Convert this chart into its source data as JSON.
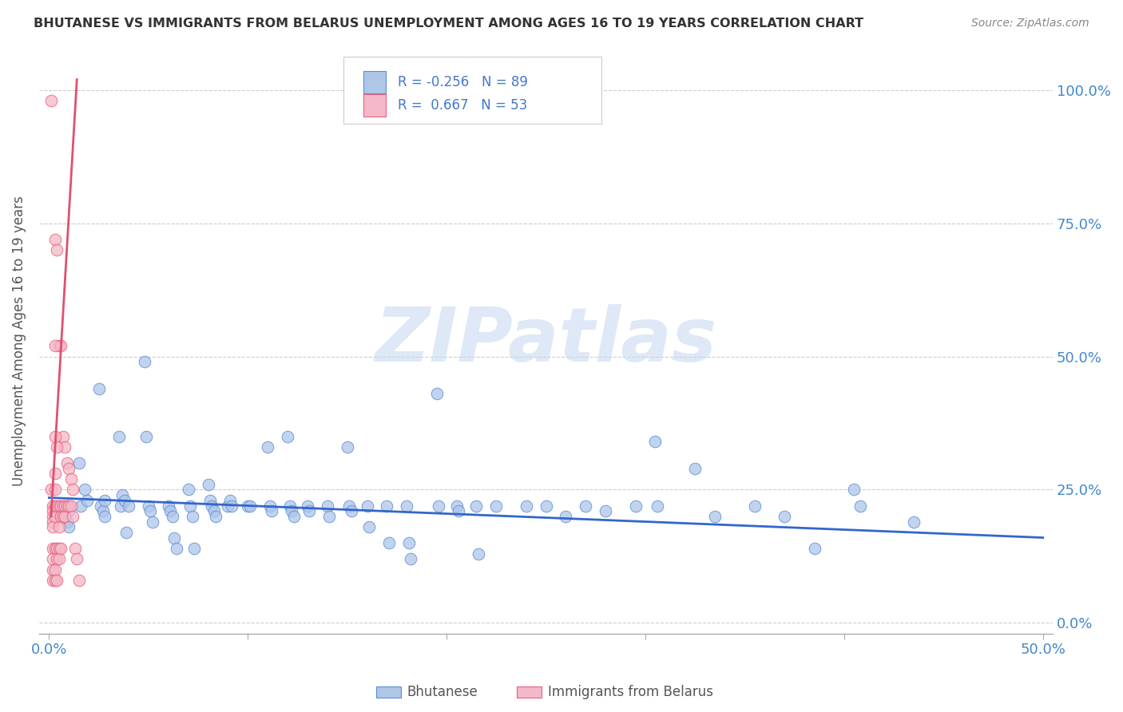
{
  "title": "BHUTANESE VS IMMIGRANTS FROM BELARUS UNEMPLOYMENT AMONG AGES 16 TO 19 YEARS CORRELATION CHART",
  "source": "Source: ZipAtlas.com",
  "ylabel": "Unemployment Among Ages 16 to 19 years",
  "xlim": [
    -0.005,
    0.505
  ],
  "ylim": [
    -0.02,
    1.08
  ],
  "yticks": [
    0.0,
    0.25,
    0.5,
    0.75,
    1.0
  ],
  "ytick_labels": [
    "0.0%",
    "25.0%",
    "50.0%",
    "75.0%",
    "100.0%"
  ],
  "xticks": [
    0.0,
    0.1,
    0.2,
    0.3,
    0.4,
    0.5
  ],
  "xtick_labels": [
    "0.0%",
    "",
    "",
    "",
    "",
    "50.0%"
  ],
  "blue_color": "#aec6e8",
  "pink_color": "#f4b8c8",
  "blue_edge_color": "#5b8dd9",
  "pink_edge_color": "#e8607a",
  "blue_line_color": "#3366cc",
  "pink_line_color": "#e05070",
  "legend_blue_label": "Bhutanese",
  "legend_pink_label": "Immigrants from Belarus",
  "R_blue": -0.256,
  "N_blue": 89,
  "R_pink": 0.667,
  "N_pink": 53,
  "watermark_text": "ZIPatlas",
  "blue_scatter": [
    [
      0.005,
      0.21
    ],
    [
      0.008,
      0.2
    ],
    [
      0.009,
      0.22
    ],
    [
      0.009,
      0.19
    ],
    [
      0.01,
      0.21
    ],
    [
      0.01,
      0.18
    ],
    [
      0.015,
      0.3
    ],
    [
      0.016,
      0.22
    ],
    [
      0.018,
      0.25
    ],
    [
      0.019,
      0.23
    ],
    [
      0.025,
      0.44
    ],
    [
      0.026,
      0.22
    ],
    [
      0.027,
      0.21
    ],
    [
      0.028,
      0.2
    ],
    [
      0.028,
      0.23
    ],
    [
      0.035,
      0.35
    ],
    [
      0.036,
      0.22
    ],
    [
      0.037,
      0.24
    ],
    [
      0.038,
      0.23
    ],
    [
      0.039,
      0.17
    ],
    [
      0.04,
      0.22
    ],
    [
      0.048,
      0.49
    ],
    [
      0.049,
      0.35
    ],
    [
      0.05,
      0.22
    ],
    [
      0.051,
      0.21
    ],
    [
      0.052,
      0.19
    ],
    [
      0.06,
      0.22
    ],
    [
      0.061,
      0.21
    ],
    [
      0.062,
      0.2
    ],
    [
      0.063,
      0.16
    ],
    [
      0.064,
      0.14
    ],
    [
      0.07,
      0.25
    ],
    [
      0.071,
      0.22
    ],
    [
      0.072,
      0.2
    ],
    [
      0.073,
      0.14
    ],
    [
      0.08,
      0.26
    ],
    [
      0.081,
      0.23
    ],
    [
      0.082,
      0.22
    ],
    [
      0.083,
      0.21
    ],
    [
      0.084,
      0.2
    ],
    [
      0.09,
      0.22
    ],
    [
      0.091,
      0.23
    ],
    [
      0.092,
      0.22
    ],
    [
      0.1,
      0.22
    ],
    [
      0.101,
      0.22
    ],
    [
      0.11,
      0.33
    ],
    [
      0.111,
      0.22
    ],
    [
      0.112,
      0.21
    ],
    [
      0.12,
      0.35
    ],
    [
      0.121,
      0.22
    ],
    [
      0.122,
      0.21
    ],
    [
      0.123,
      0.2
    ],
    [
      0.13,
      0.22
    ],
    [
      0.131,
      0.21
    ],
    [
      0.14,
      0.22
    ],
    [
      0.141,
      0.2
    ],
    [
      0.15,
      0.33
    ],
    [
      0.151,
      0.22
    ],
    [
      0.152,
      0.21
    ],
    [
      0.16,
      0.22
    ],
    [
      0.161,
      0.18
    ],
    [
      0.17,
      0.22
    ],
    [
      0.171,
      0.15
    ],
    [
      0.18,
      0.22
    ],
    [
      0.181,
      0.15
    ],
    [
      0.182,
      0.12
    ],
    [
      0.195,
      0.43
    ],
    [
      0.196,
      0.22
    ],
    [
      0.205,
      0.22
    ],
    [
      0.206,
      0.21
    ],
    [
      0.215,
      0.22
    ],
    [
      0.216,
      0.13
    ],
    [
      0.225,
      0.22
    ],
    [
      0.24,
      0.22
    ],
    [
      0.25,
      0.22
    ],
    [
      0.26,
      0.2
    ],
    [
      0.27,
      0.22
    ],
    [
      0.28,
      0.21
    ],
    [
      0.295,
      0.22
    ],
    [
      0.305,
      0.34
    ],
    [
      0.306,
      0.22
    ],
    [
      0.325,
      0.29
    ],
    [
      0.335,
      0.2
    ],
    [
      0.355,
      0.22
    ],
    [
      0.37,
      0.2
    ],
    [
      0.385,
      0.14
    ],
    [
      0.405,
      0.25
    ],
    [
      0.408,
      0.22
    ],
    [
      0.435,
      0.19
    ]
  ],
  "pink_scatter": [
    [
      0.001,
      0.98
    ],
    [
      0.003,
      0.72
    ],
    [
      0.004,
      0.7
    ],
    [
      0.005,
      0.52
    ],
    [
      0.006,
      0.52
    ],
    [
      0.007,
      0.35
    ],
    [
      0.008,
      0.33
    ],
    [
      0.009,
      0.3
    ],
    [
      0.01,
      0.29
    ],
    [
      0.011,
      0.27
    ],
    [
      0.012,
      0.25
    ],
    [
      0.001,
      0.25
    ],
    [
      0.002,
      0.22
    ],
    [
      0.002,
      0.21
    ],
    [
      0.002,
      0.2
    ],
    [
      0.002,
      0.19
    ],
    [
      0.002,
      0.18
    ],
    [
      0.002,
      0.14
    ],
    [
      0.002,
      0.12
    ],
    [
      0.002,
      0.1
    ],
    [
      0.002,
      0.08
    ],
    [
      0.003,
      0.52
    ],
    [
      0.003,
      0.35
    ],
    [
      0.003,
      0.28
    ],
    [
      0.003,
      0.25
    ],
    [
      0.003,
      0.22
    ],
    [
      0.003,
      0.2
    ],
    [
      0.003,
      0.14
    ],
    [
      0.003,
      0.1
    ],
    [
      0.003,
      0.08
    ],
    [
      0.004,
      0.33
    ],
    [
      0.004,
      0.22
    ],
    [
      0.004,
      0.14
    ],
    [
      0.004,
      0.12
    ],
    [
      0.004,
      0.08
    ],
    [
      0.005,
      0.22
    ],
    [
      0.005,
      0.18
    ],
    [
      0.005,
      0.14
    ],
    [
      0.005,
      0.12
    ],
    [
      0.006,
      0.22
    ],
    [
      0.006,
      0.2
    ],
    [
      0.006,
      0.14
    ],
    [
      0.007,
      0.22
    ],
    [
      0.007,
      0.2
    ],
    [
      0.008,
      0.22
    ],
    [
      0.008,
      0.2
    ],
    [
      0.009,
      0.22
    ],
    [
      0.01,
      0.22
    ],
    [
      0.011,
      0.22
    ],
    [
      0.012,
      0.2
    ],
    [
      0.013,
      0.14
    ],
    [
      0.014,
      0.12
    ],
    [
      0.015,
      0.08
    ]
  ],
  "blue_trend": [
    0.0,
    0.235,
    0.5,
    0.16
  ],
  "pink_trend": [
    0.001,
    0.2,
    0.014,
    1.02
  ]
}
